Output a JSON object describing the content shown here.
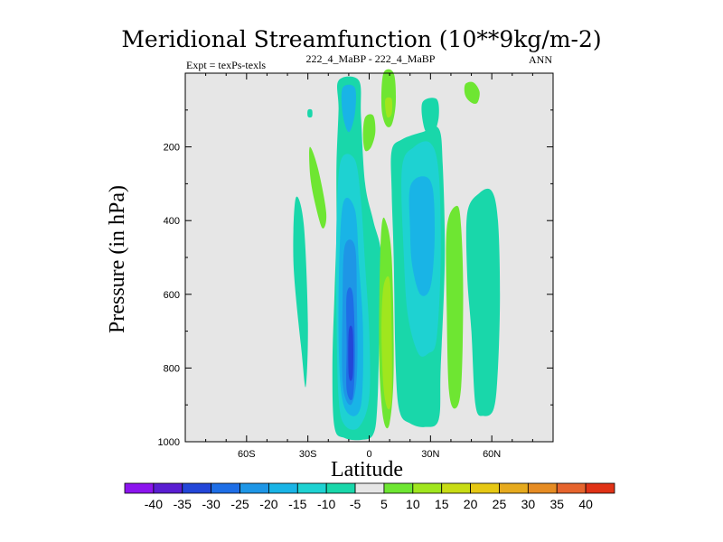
{
  "chart_data": {
    "type": "contour",
    "title": "Meridional Streamfunction (10**9kg/m-2)",
    "left_string": "Expt = texPs-texls",
    "center_string": "222_4_MaBP - 222_4_MaBP",
    "right_string": "ANN",
    "xlabel": "Latitude",
    "ylabel": "Pressure (in hPa)",
    "xlim": [
      -90,
      90
    ],
    "ylim": [
      1000,
      0
    ],
    "x_ticks": [
      {
        "value": -60,
        "label": "60S"
      },
      {
        "value": -30,
        "label": "30S"
      },
      {
        "value": 0,
        "label": "0"
      },
      {
        "value": 30,
        "label": "30N"
      },
      {
        "value": 60,
        "label": "60N"
      }
    ],
    "y_ticks": [
      {
        "value": 200,
        "label": "200"
      },
      {
        "value": 400,
        "label": "400"
      },
      {
        "value": 600,
        "label": "600"
      },
      {
        "value": 800,
        "label": "800"
      },
      {
        "value": 1000,
        "label": "1000"
      }
    ],
    "background_color": "#e6e6e6",
    "colorbar": {
      "labels": [
        "-40",
        "-35",
        "-30",
        "-25",
        "-20",
        "-15",
        "-10",
        "-5",
        "5",
        "10",
        "15",
        "20",
        "25",
        "30",
        "35",
        "40"
      ],
      "colors": [
        "#8c14ee",
        "#5a1ed2",
        "#2346d8",
        "#1e6ee6",
        "#1e96e6",
        "#19b4e6",
        "#1ed2d2",
        "#19d7aa",
        "#e6e6e6",
        "#6ee632",
        "#a0e61e",
        "#c8dc14",
        "#e6c814",
        "#e6aa1e",
        "#e68c23",
        "#e6642d",
        "#e03216"
      ]
    },
    "regions": [
      {
        "name": "sh-tropics-cell",
        "level": -5,
        "points": [
          [
            -15,
            20
          ],
          [
            -5,
            20
          ],
          [
            -4,
            120
          ],
          [
            -2,
            300
          ],
          [
            2,
            400
          ],
          [
            6,
            500
          ],
          [
            5,
            700
          ],
          [
            4,
            900
          ],
          [
            2,
            980
          ],
          [
            -4,
            995
          ],
          [
            -12,
            990
          ],
          [
            -17,
            960
          ],
          [
            -18,
            800
          ],
          [
            -17,
            600
          ],
          [
            -16,
            430
          ],
          [
            -16,
            250
          ],
          [
            -15,
            100
          ]
        ]
      },
      {
        "name": "sh-tropics-core-10",
        "level": -10,
        "points": [
          [
            -14,
            240
          ],
          [
            -7,
            235
          ],
          [
            -4,
            350
          ],
          [
            -2,
            520
          ],
          [
            0,
            700
          ],
          [
            0,
            880
          ],
          [
            -5,
            960
          ],
          [
            -12,
            955
          ],
          [
            -15,
            880
          ],
          [
            -16,
            650
          ],
          [
            -16,
            420
          ]
        ]
      },
      {
        "name": "sh-tropics-core-15",
        "level": -15,
        "points": [
          [
            -13,
            360
          ],
          [
            -7,
            370
          ],
          [
            -5,
            520
          ],
          [
            -3,
            700
          ],
          [
            -4,
            900
          ],
          [
            -10,
            925
          ],
          [
            -14,
            850
          ],
          [
            -15,
            620
          ]
        ]
      },
      {
        "name": "sh-tropics-core-20",
        "level": -20,
        "points": [
          [
            -12,
            470
          ],
          [
            -7,
            470
          ],
          [
            -6,
            620
          ],
          [
            -6,
            820
          ],
          [
            -9,
            900
          ],
          [
            -13,
            840
          ],
          [
            -13,
            620
          ]
        ]
      },
      {
        "name": "sh-tropics-core-25",
        "level": -25,
        "points": [
          [
            -11,
            600
          ],
          [
            -8,
            600
          ],
          [
            -7,
            760
          ],
          [
            -8,
            880
          ],
          [
            -11,
            860
          ],
          [
            -11,
            740
          ]
        ]
      },
      {
        "name": "sh-tropics-core-30",
        "level": -30,
        "points": [
          [
            -10,
            700
          ],
          [
            -8,
            700
          ],
          [
            -8,
            820
          ],
          [
            -10,
            820
          ]
        ]
      },
      {
        "name": "sh-tropics-upper-15",
        "level": -15,
        "points": [
          [
            -13,
            40
          ],
          [
            -7,
            40
          ],
          [
            -7,
            110
          ],
          [
            -10,
            160
          ],
          [
            -13,
            110
          ]
        ]
      },
      {
        "name": "sh-subtropics-cell",
        "level": -5,
        "points": [
          [
            -36,
            340
          ],
          [
            -32,
            410
          ],
          [
            -30,
            680
          ],
          [
            -31,
            850
          ],
          [
            -33,
            760
          ],
          [
            -37,
            520
          ]
        ]
      },
      {
        "name": "sh-upper-dot",
        "level": -5,
        "points": [
          [
            -30,
            100
          ],
          [
            -28,
            100
          ],
          [
            -28,
            118
          ],
          [
            -30,
            118
          ]
        ]
      },
      {
        "name": "sh-positive-band",
        "level": 5,
        "points": [
          [
            -29,
            200
          ],
          [
            -25,
            260
          ],
          [
            -21,
            380
          ],
          [
            -23,
            420
          ],
          [
            -27,
            340
          ],
          [
            -29,
            270
          ]
        ]
      },
      {
        "name": "nh-tropics-cell",
        "level": -5,
        "points": [
          [
            11,
            210
          ],
          [
            16,
            180
          ],
          [
            26,
            160
          ],
          [
            34,
            150
          ],
          [
            36,
            250
          ],
          [
            37,
            500
          ],
          [
            35,
            800
          ],
          [
            34,
            940
          ],
          [
            27,
            960
          ],
          [
            20,
            950
          ],
          [
            15,
            920
          ],
          [
            13,
            800
          ],
          [
            12,
            500
          ],
          [
            11,
            320
          ]
        ]
      },
      {
        "name": "nh-tropics-core-10",
        "level": -10,
        "points": [
          [
            16,
            260
          ],
          [
            22,
            200
          ],
          [
            30,
            190
          ],
          [
            34,
            270
          ],
          [
            35,
            500
          ],
          [
            33,
            720
          ],
          [
            29,
            760
          ],
          [
            24,
            760
          ],
          [
            19,
            660
          ],
          [
            17,
            500
          ]
        ]
      },
      {
        "name": "nh-tropics-core-15",
        "level": -15,
        "points": [
          [
            20,
            310
          ],
          [
            26,
            280
          ],
          [
            31,
            310
          ],
          [
            32,
            450
          ],
          [
            30,
            580
          ],
          [
            25,
            600
          ],
          [
            21,
            520
          ],
          [
            20,
            420
          ]
        ]
      },
      {
        "name": "nh-tropics-upper",
        "level": -5,
        "points": [
          [
            26,
            80
          ],
          [
            33,
            70
          ],
          [
            34,
            120
          ],
          [
            31,
            170
          ],
          [
            27,
            150
          ]
        ]
      },
      {
        "name": "nh-subtropics-cell",
        "level": -5,
        "points": [
          [
            48,
            380
          ],
          [
            54,
            325
          ],
          [
            60,
            320
          ],
          [
            63,
            400
          ],
          [
            64,
            600
          ],
          [
            63,
            800
          ],
          [
            61,
            910
          ],
          [
            56,
            930
          ],
          [
            52,
            900
          ],
          [
            50,
            700
          ],
          [
            48,
            550
          ]
        ]
      },
      {
        "name": "eq-positive-upper",
        "level": 5,
        "points": [
          [
            7,
            0
          ],
          [
            12,
            0
          ],
          [
            13,
            80
          ],
          [
            11,
            140
          ],
          [
            8,
            140
          ],
          [
            6,
            90
          ]
        ]
      },
      {
        "name": "eq-positive-upper-10",
        "level": 10,
        "points": [
          [
            8,
            70
          ],
          [
            11,
            70
          ],
          [
            11,
            110
          ],
          [
            9,
            120
          ],
          [
            8,
            100
          ]
        ]
      },
      {
        "name": "eq-positive-dot",
        "level": 5,
        "points": [
          [
            -2,
            120
          ],
          [
            2,
            115
          ],
          [
            3,
            160
          ],
          [
            1,
            200
          ],
          [
            -2,
            210
          ],
          [
            -3,
            170
          ]
        ]
      },
      {
        "name": "eq-positive-lower",
        "level": 5,
        "points": [
          [
            6,
            420
          ],
          [
            8,
            400
          ],
          [
            11,
            500
          ],
          [
            12,
            800
          ],
          [
            10,
            950
          ],
          [
            7,
            940
          ],
          [
            5,
            800
          ],
          [
            5,
            600
          ]
        ]
      },
      {
        "name": "eq-positive-lower-10",
        "level": 10,
        "points": [
          [
            7,
            580
          ],
          [
            10,
            560
          ],
          [
            11,
            700
          ],
          [
            11,
            880
          ],
          [
            9,
            910
          ],
          [
            7,
            850
          ],
          [
            6,
            700
          ]
        ]
      },
      {
        "name": "nh-positive-band",
        "level": 5,
        "points": [
          [
            38,
            420
          ],
          [
            43,
            360
          ],
          [
            45,
            420
          ],
          [
            46,
            600
          ],
          [
            45,
            850
          ],
          [
            42,
            910
          ],
          [
            39,
            860
          ],
          [
            38,
            650
          ]
        ]
      },
      {
        "name": "nh-positive-dot",
        "level": 5,
        "points": [
          [
            47,
            30
          ],
          [
            51,
            25
          ],
          [
            54,
            50
          ],
          [
            53,
            80
          ],
          [
            50,
            80
          ],
          [
            47,
            60
          ]
        ]
      }
    ]
  }
}
